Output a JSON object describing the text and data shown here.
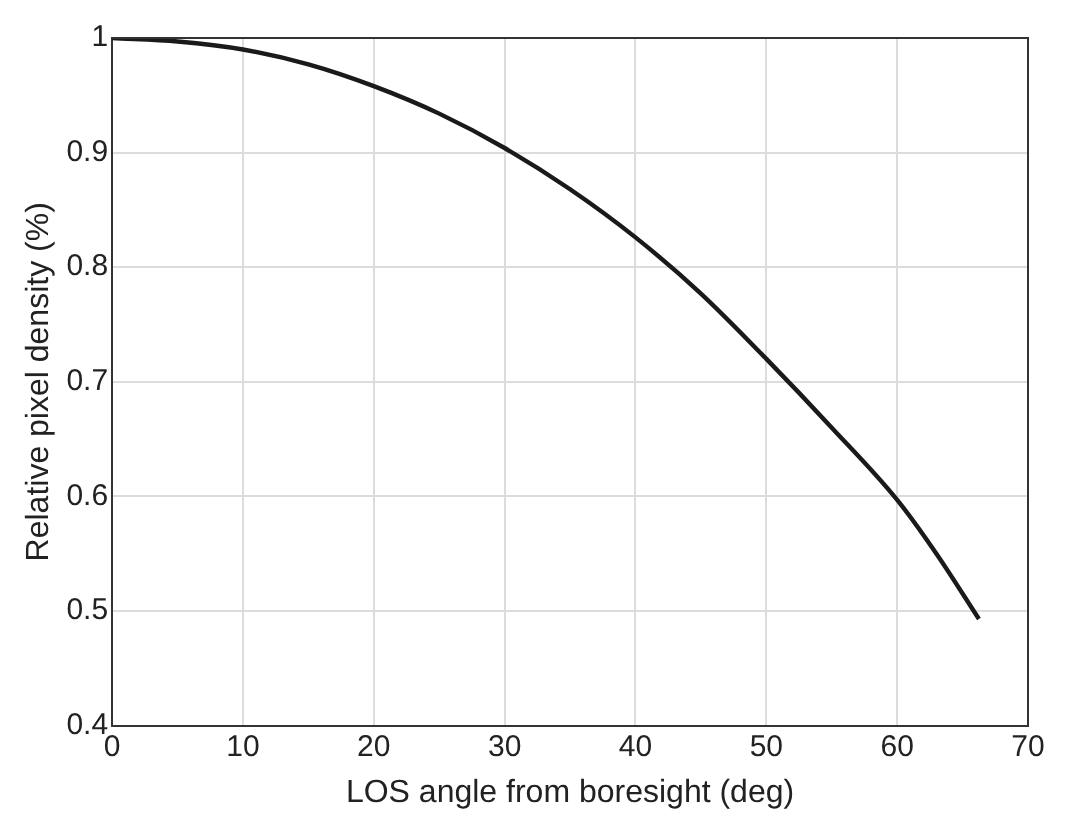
{
  "chart_data": {
    "type": "line",
    "xlabel": "LOS angle from boresight (deg)",
    "ylabel": "Relative pixel density (%)",
    "x": [
      0,
      5,
      10,
      15,
      20,
      25,
      30,
      35,
      40,
      45,
      50,
      55,
      60,
      63,
      66.25
    ],
    "series": [
      {
        "color": "#1a1a1a",
        "values": [
          1.0,
          0.997,
          0.99,
          0.977,
          0.958,
          0.934,
          0.904,
          0.868,
          0.826,
          0.777,
          0.72,
          0.66,
          0.597,
          0.55,
          0.493
        ]
      }
    ],
    "xlim": [
      0,
      70
    ],
    "xticks": [
      0,
      10,
      20,
      30,
      40,
      50,
      60,
      70
    ],
    "ylim": [
      0.4,
      1
    ],
    "yticks": [
      0.4,
      0.5,
      0.6,
      0.7,
      0.8,
      0.9,
      1
    ],
    "grid": true,
    "legend": false,
    "marker": "none",
    "line_style": "solid"
  }
}
